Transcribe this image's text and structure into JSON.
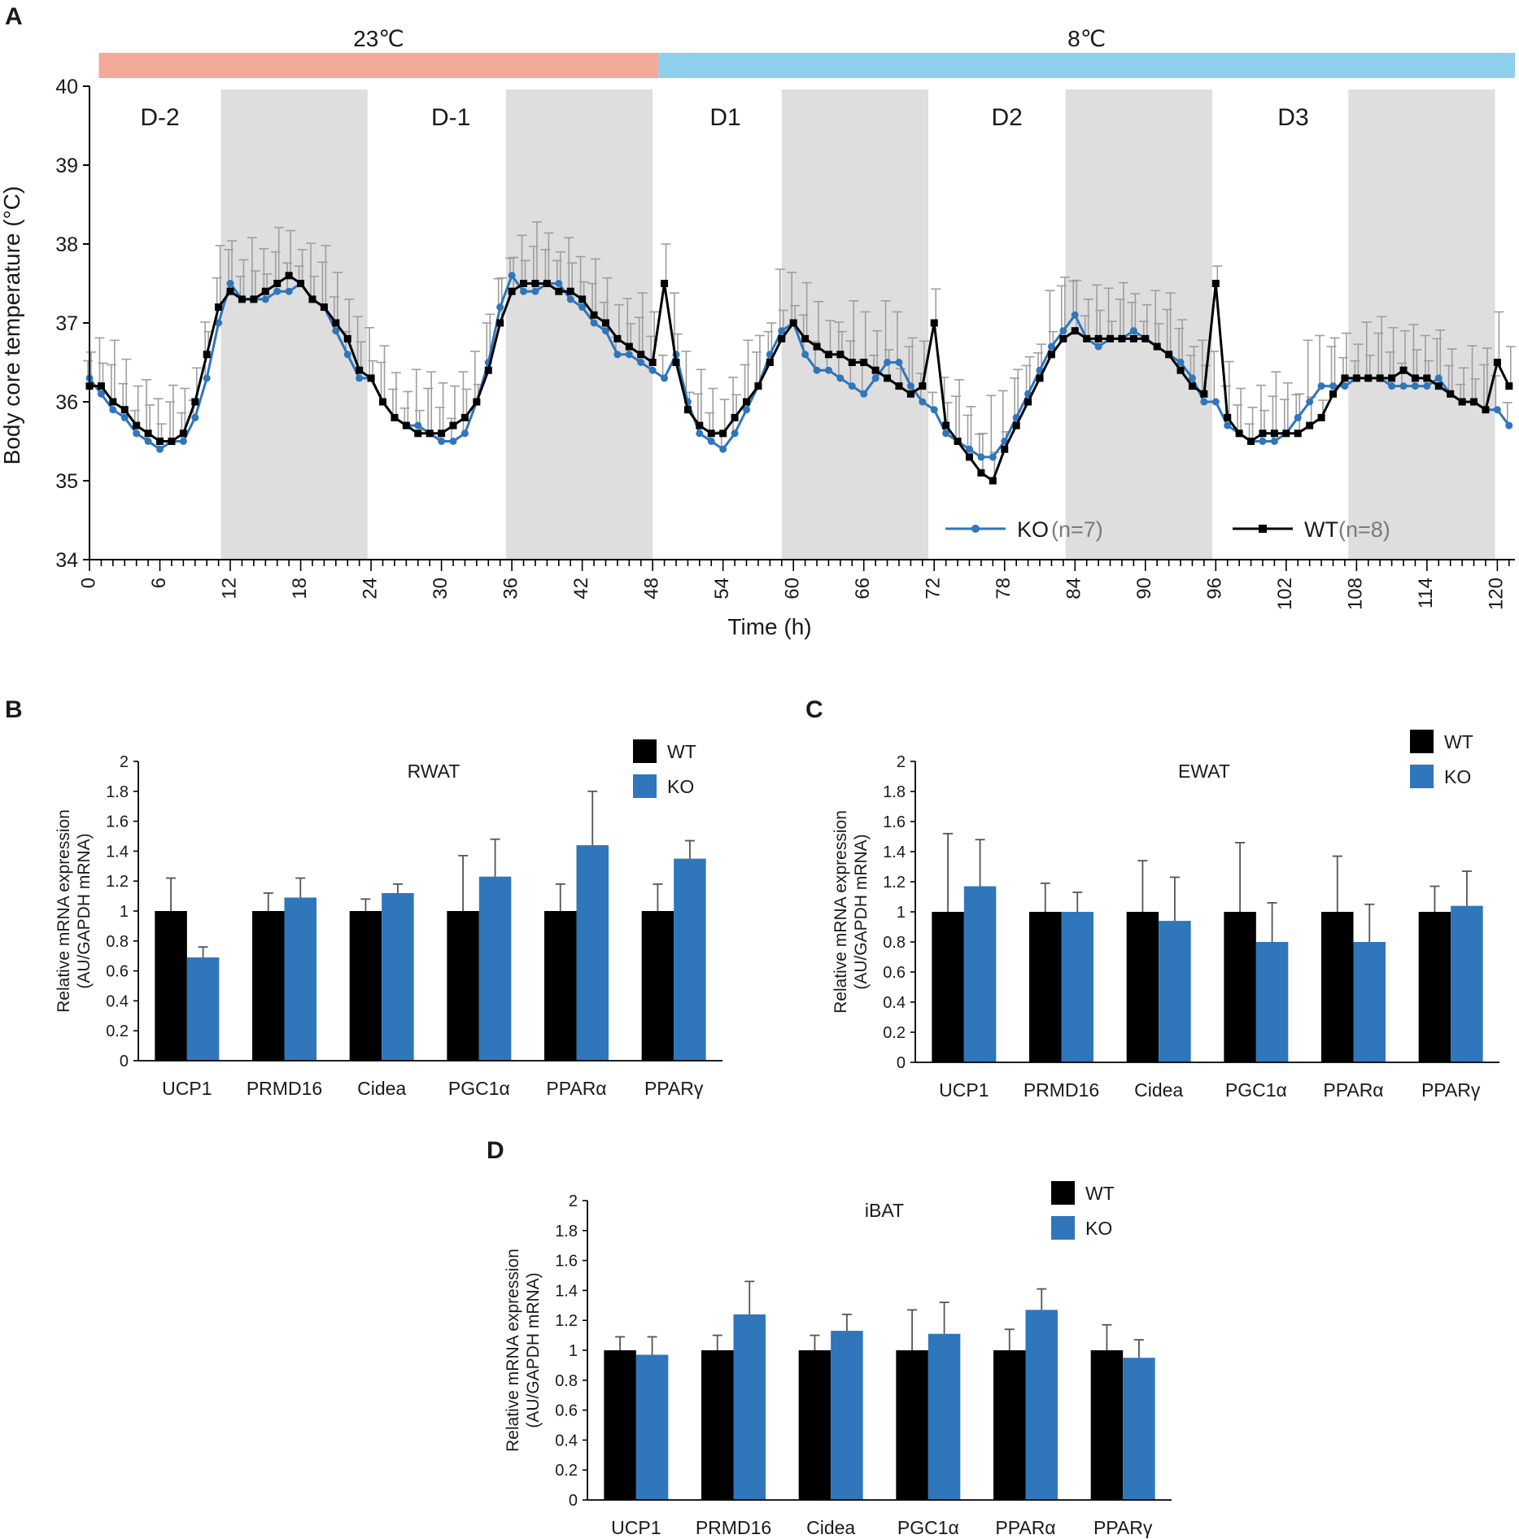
{
  "panels": {
    "A": "A",
    "B": "B",
    "C": "C",
    "D": "D"
  },
  "colors": {
    "wt": "#000000",
    "ko": "#2f76bb",
    "ko_light": "#6b9fcf",
    "wt_light": "#6e6e6e",
    "error": "#9e9e9e",
    "night_shade": "#dedede",
    "warm_bar": "#f4a99a",
    "cold_bar": "#8ecfee"
  },
  "chart_data": [
    {
      "id": "A",
      "type": "line",
      "ylabel": "Body core temperature (°C)",
      "xlabel": "Time (h)",
      "ylim": [
        34,
        40
      ],
      "yticks": [
        34,
        35,
        36,
        37,
        38,
        39,
        40
      ],
      "xlim": [
        0,
        121.5
      ],
      "xticks": [
        0,
        6,
        12,
        18,
        24,
        30,
        36,
        42,
        48,
        54,
        60,
        66,
        72,
        78,
        84,
        90,
        96,
        102,
        108,
        114,
        120
      ],
      "temperature_bars": [
        {
          "label": "23℃",
          "start": 0.8,
          "end": 48.5
        },
        {
          "label": "8℃",
          "start": 48.5,
          "end": 121.5
        }
      ],
      "day_labels": [
        {
          "label": "D-2",
          "x": 6
        },
        {
          "label": "D-1",
          "x": 30.8
        },
        {
          "label": "D1",
          "x": 54.2
        },
        {
          "label": "D2",
          "x": 78.2
        },
        {
          "label": "D3",
          "x": 102.6
        }
      ],
      "dark_periods": [
        [
          11.2,
          23.7
        ],
        [
          35.5,
          48
        ],
        [
          59,
          71.5
        ],
        [
          83.2,
          95.7
        ],
        [
          107.3,
          119.8
        ]
      ],
      "legend": [
        {
          "name": "KO",
          "n": "(n=7)"
        },
        {
          "name": "WT",
          "n": "(n=8)"
        }
      ],
      "series": [
        {
          "name": "KO",
          "x": [
            0,
            1,
            2,
            3,
            4,
            5,
            6,
            7,
            8,
            9,
            10,
            11,
            12,
            13,
            14,
            15,
            16,
            17,
            18,
            19,
            20,
            21,
            22,
            23,
            24,
            25,
            26,
            27,
            28,
            29,
            30,
            31,
            32,
            33,
            34,
            35,
            36,
            37,
            38,
            39,
            40,
            41,
            42,
            43,
            44,
            45,
            46,
            47,
            48,
            49,
            50,
            51,
            52,
            53,
            54,
            55,
            56,
            57,
            58,
            59,
            60,
            61,
            62,
            63,
            64,
            65,
            66,
            67,
            68,
            69,
            70,
            71,
            72,
            73,
            74,
            75,
            76,
            77,
            78,
            79,
            80,
            81,
            82,
            83,
            84,
            85,
            86,
            87,
            88,
            89,
            90,
            91,
            92,
            93,
            94,
            95,
            96,
            97,
            98,
            99,
            100,
            101,
            102,
            103,
            104,
            105,
            106,
            107,
            108,
            109,
            110,
            111,
            112,
            113,
            114,
            115,
            116,
            117,
            118,
            119,
            120,
            121
          ],
          "y": [
            36.3,
            36.1,
            35.9,
            35.8,
            35.6,
            35.5,
            35.4,
            35.5,
            35.5,
            35.8,
            36.3,
            37.0,
            37.5,
            37.3,
            37.3,
            37.3,
            37.4,
            37.4,
            37.5,
            37.3,
            37.2,
            36.9,
            36.6,
            36.3,
            36.3,
            36.0,
            35.8,
            35.7,
            35.7,
            35.6,
            35.5,
            35.5,
            35.6,
            36.0,
            36.5,
            37.2,
            37.6,
            37.4,
            37.4,
            37.5,
            37.5,
            37.3,
            37.2,
            37.0,
            36.9,
            36.6,
            36.6,
            36.5,
            36.4,
            36.3,
            36.6,
            36.0,
            35.6,
            35.5,
            35.4,
            35.6,
            35.9,
            36.2,
            36.6,
            36.9,
            37.0,
            36.6,
            36.4,
            36.4,
            36.3,
            36.2,
            36.1,
            36.3,
            36.5,
            36.5,
            36.2,
            36.0,
            35.9,
            35.6,
            35.5,
            35.4,
            35.3,
            35.3,
            35.5,
            35.8,
            36.1,
            36.4,
            36.7,
            36.9,
            37.1,
            36.8,
            36.7,
            36.8,
            36.8,
            36.9,
            36.8,
            36.7,
            36.6,
            36.5,
            36.3,
            36.0,
            36.0,
            35.7,
            35.6,
            35.5,
            35.5,
            35.5,
            35.6,
            35.8,
            36.0,
            36.2,
            36.2,
            36.2,
            36.3,
            36.3,
            36.3,
            36.2,
            36.2,
            36.2,
            36.2,
            36.3,
            36.1,
            36.0,
            36.0,
            35.9,
            35.9,
            35.7
          ]
        },
        {
          "name": "WT",
          "x": [
            0,
            1,
            2,
            3,
            4,
            5,
            6,
            7,
            8,
            9,
            10,
            11,
            12,
            13,
            14,
            15,
            16,
            17,
            18,
            19,
            20,
            21,
            22,
            23,
            24,
            25,
            26,
            27,
            28,
            29,
            30,
            31,
            32,
            33,
            34,
            35,
            36,
            37,
            38,
            39,
            40,
            41,
            42,
            43,
            44,
            45,
            46,
            47,
            48,
            49,
            50,
            51,
            52,
            53,
            54,
            55,
            56,
            57,
            58,
            59,
            60,
            61,
            62,
            63,
            64,
            65,
            66,
            67,
            68,
            69,
            70,
            71,
            72,
            73,
            74,
            75,
            76,
            77,
            78,
            79,
            80,
            81,
            82,
            83,
            84,
            85,
            86,
            87,
            88,
            89,
            90,
            91,
            92,
            93,
            94,
            95,
            96,
            97,
            98,
            99,
            100,
            101,
            102,
            103,
            104,
            105,
            106,
            107,
            108,
            109,
            110,
            111,
            112,
            113,
            114,
            115,
            116,
            117,
            118,
            119,
            120,
            121
          ],
          "y": [
            36.2,
            36.2,
            36.0,
            35.9,
            35.7,
            35.6,
            35.5,
            35.5,
            35.6,
            36.0,
            36.6,
            37.2,
            37.4,
            37.3,
            37.3,
            37.4,
            37.5,
            37.6,
            37.5,
            37.3,
            37.2,
            37.0,
            36.8,
            36.4,
            36.3,
            36.0,
            35.8,
            35.7,
            35.6,
            35.6,
            35.6,
            35.7,
            35.8,
            36.0,
            36.4,
            37.0,
            37.4,
            37.5,
            37.5,
            37.5,
            37.4,
            37.4,
            37.3,
            37.1,
            37.0,
            36.8,
            36.7,
            36.6,
            36.5,
            37.5,
            36.5,
            35.9,
            35.7,
            35.6,
            35.6,
            35.8,
            36.0,
            36.2,
            36.5,
            36.8,
            37.0,
            36.8,
            36.7,
            36.6,
            36.6,
            36.5,
            36.5,
            36.4,
            36.3,
            36.2,
            36.1,
            36.2,
            37.0,
            35.7,
            35.5,
            35.3,
            35.1,
            35.0,
            35.4,
            35.7,
            36.0,
            36.3,
            36.6,
            36.8,
            36.9,
            36.8,
            36.8,
            36.8,
            36.8,
            36.8,
            36.8,
            36.7,
            36.6,
            36.4,
            36.2,
            36.1,
            37.5,
            35.8,
            35.6,
            35.5,
            35.6,
            35.6,
            35.6,
            35.6,
            35.7,
            35.8,
            36.1,
            36.3,
            36.3,
            36.3,
            36.3,
            36.3,
            36.4,
            36.3,
            36.3,
            36.2,
            36.1,
            36.0,
            36.0,
            35.9,
            36.5,
            36.2
          ]
        }
      ]
    },
    {
      "id": "B",
      "type": "bar",
      "title": "RWAT",
      "ylabel": "Relative mRNA expression",
      "ylabel2": "(AU/GAPDH mRNA)",
      "ylim": [
        0,
        2
      ],
      "yticks": [
        "0",
        "0.2",
        "0.4",
        "0.6",
        "0.8",
        "1",
        "1.2",
        "1.4",
        "1.6",
        "1.8",
        "2"
      ],
      "categories": [
        "UCP1",
        "PRMD16",
        "Cidea",
        "PGC1α",
        "PPARα",
        "PPARγ"
      ],
      "series": [
        {
          "name": "WT",
          "values": [
            1,
            1,
            1,
            1,
            1,
            1
          ],
          "errors": [
            0.22,
            0.12,
            0.08,
            0.37,
            0.18,
            0.18
          ]
        },
        {
          "name": "KO",
          "values": [
            0.69,
            1.09,
            1.12,
            1.23,
            1.44,
            1.35
          ],
          "errors": [
            0.07,
            0.13,
            0.06,
            0.25,
            0.36,
            0.12
          ]
        }
      ]
    },
    {
      "id": "C",
      "type": "bar",
      "title": "EWAT",
      "ylabel": "Relative mRNA expression",
      "ylabel2": "(AU/GAPDH mRNA)",
      "ylim": [
        0,
        2
      ],
      "yticks": [
        "0",
        "0.2",
        "0.4",
        "0.6",
        "0.8",
        "1",
        "1.2",
        "1.4",
        "1.6",
        "1.8",
        "2"
      ],
      "categories": [
        "UCP1",
        "PRMD16",
        "Cidea",
        "PGC1α",
        "PPARα",
        "PPARγ"
      ],
      "series": [
        {
          "name": "WT",
          "values": [
            1,
            1,
            1,
            1,
            1,
            1
          ],
          "errors": [
            0.52,
            0.19,
            0.34,
            0.46,
            0.37,
            0.17
          ]
        },
        {
          "name": "KO",
          "values": [
            1.17,
            1,
            0.94,
            0.8,
            0.8,
            1.04
          ],
          "errors": [
            0.31,
            0.13,
            0.29,
            0.26,
            0.25,
            0.23
          ]
        }
      ]
    },
    {
      "id": "D",
      "type": "bar",
      "title": "iBAT",
      "ylabel": "Relative mRNA expression",
      "ylabel2": "(AU/GAPDH mRNA)",
      "ylim": [
        0,
        2
      ],
      "yticks": [
        "0",
        "0.2",
        "0.4",
        "0.6",
        "0.8",
        "1",
        "1.2",
        "1.4",
        "1.6",
        "1.8",
        "2"
      ],
      "categories": [
        "UCP1",
        "PRMD16",
        "Cidea",
        "PGC1α",
        "PPARα",
        "PPARγ"
      ],
      "series": [
        {
          "name": "WT",
          "values": [
            1,
            1,
            1,
            1,
            1,
            1
          ],
          "errors": [
            0.09,
            0.1,
            0.1,
            0.27,
            0.14,
            0.17
          ]
        },
        {
          "name": "KO",
          "values": [
            0.97,
            1.24,
            1.13,
            1.11,
            1.27,
            0.95
          ],
          "errors": [
            0.12,
            0.22,
            0.11,
            0.21,
            0.14,
            0.12
          ]
        }
      ]
    }
  ]
}
